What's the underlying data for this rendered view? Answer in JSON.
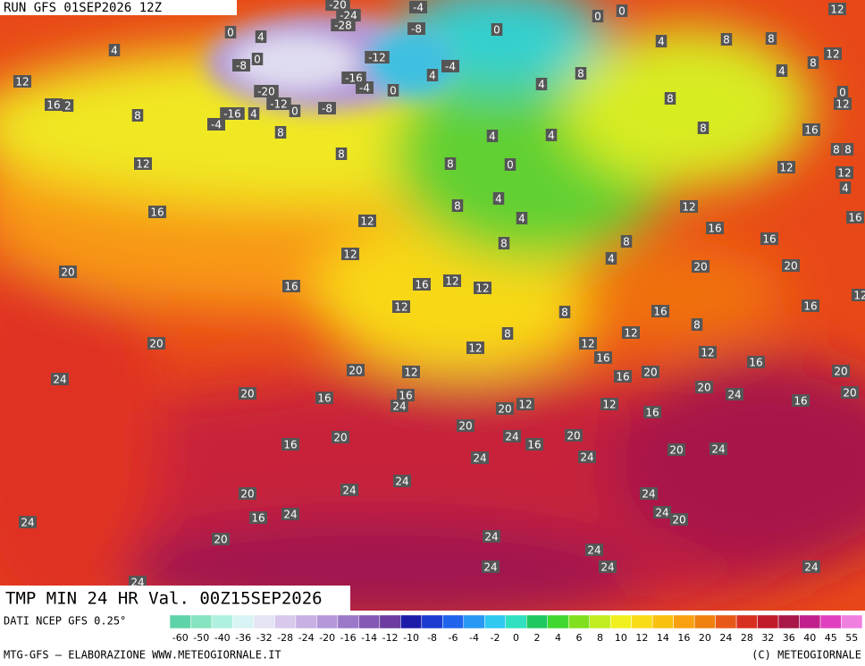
{
  "header": {
    "run": "RUN GFS 01SEP2026 12Z",
    "field": "TMP MIN 24 HR Val. 00Z15SEP2026"
  },
  "footer": {
    "source": "DATI NCEP GFS 0.25°",
    "credit": "MTG-GFS — ELABORAZIONE WWW.METEOGIORNALE.IT",
    "copyright": "(C) METEOGIORNALE"
  },
  "colorbar": {
    "ticks": [
      -60,
      -50,
      -40,
      -36,
      -32,
      -28,
      -24,
      -20,
      -16,
      -14,
      -12,
      -10,
      -8,
      -6,
      -4,
      -2,
      0,
      2,
      4,
      6,
      8,
      10,
      12,
      14,
      16,
      20,
      24,
      28,
      32,
      36,
      40,
      45,
      55
    ],
    "colors": [
      "#5fd3a8",
      "#86e3c0",
      "#b0f0e0",
      "#d8f4f4",
      "#e4e4f4",
      "#d8c8ec",
      "#c8b0e4",
      "#b498d8",
      "#9c78c8",
      "#8458b4",
      "#6c3ca0",
      "#1c1ca8",
      "#1c3cd0",
      "#2064ec",
      "#2898f4",
      "#30c8f0",
      "#30e0c0",
      "#20c860",
      "#40d830",
      "#80e020",
      "#c0ec20",
      "#f0f020",
      "#f8dc18",
      "#f8c010",
      "#f8a010",
      "#f08010",
      "#e85818",
      "#d83020",
      "#c01c2c",
      "#a81848",
      "#c0208c",
      "#e040c0",
      "#f080e0"
    ]
  },
  "map": {
    "labels": [
      -20,
      -24,
      -28,
      -4,
      -8,
      0,
      0,
      12,
      0,
      4,
      4,
      0,
      4,
      8,
      8,
      12,
      8,
      -8,
      0,
      -12,
      -4,
      4,
      -16,
      -4,
      0,
      4,
      8,
      4,
      12,
      -20,
      -12,
      0,
      -8,
      8,
      0,
      12,
      16,
      2,
      8,
      -16,
      4,
      -4,
      8,
      8,
      16,
      4,
      4,
      8,
      8,
      12,
      8,
      0,
      12,
      8,
      12,
      4,
      4,
      8,
      12,
      16,
      12,
      4,
      16,
      16,
      8,
      8,
      16,
      12,
      4,
      20,
      20,
      20,
      16,
      16,
      12,
      12,
      12,
      12,
      8,
      16,
      16,
      8,
      20,
      8,
      12,
      12,
      12,
      12,
      16,
      16,
      24,
      20,
      12,
      16,
      20,
      20,
      20,
      16,
      16,
      24,
      20,
      24,
      16,
      20,
      12,
      20,
      12,
      16,
      20,
      24,
      16,
      20,
      16,
      20,
      24,
      24,
      20,
      24,
      24,
      24,
      20,
      24,
      16,
      24,
      24,
      20,
      24,
      20,
      24,
      24,
      24,
      24,
      24,
      24
    ]
  }
}
